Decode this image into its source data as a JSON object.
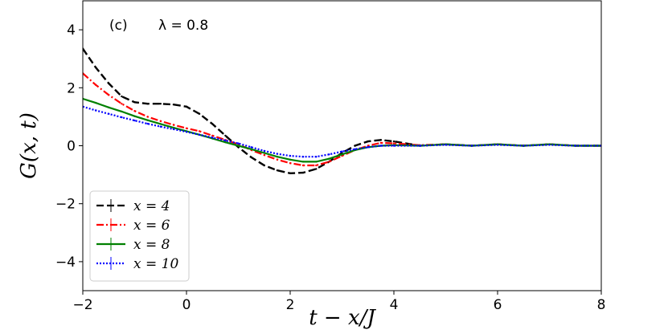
{
  "chart_data": {
    "type": "line",
    "panel_label": "(c)",
    "annotation": "λ = 0.8",
    "xlabel": "t − x/J",
    "ylabel": "G(x, t)",
    "xlim": [
      -2,
      8
    ],
    "ylim": [
      -5,
      5
    ],
    "x_ticks": [
      "−2",
      "0",
      "2",
      "4",
      "6",
      "8"
    ],
    "y_ticks": [
      "−4",
      "−2",
      "0",
      "2",
      "4"
    ],
    "x_tick_values": [
      -2,
      0,
      2,
      4,
      6,
      8
    ],
    "y_tick_values": [
      -4,
      -2,
      0,
      2,
      4
    ],
    "grid": false,
    "legend_position": "lower-left",
    "series": [
      {
        "name": "x = 4",
        "color": "#000000",
        "style": "dashed",
        "x": [
          -2,
          -1.75,
          -1.5,
          -1.25,
          -1,
          -0.75,
          -0.5,
          -0.25,
          0,
          0.25,
          0.5,
          0.75,
          1,
          1.25,
          1.5,
          1.75,
          2,
          2.25,
          2.5,
          2.75,
          3,
          3.25,
          3.5,
          3.75,
          4,
          4.5,
          5,
          5.5,
          6,
          6.5,
          7,
          7.5,
          8
        ],
        "y": [
          3.35,
          2.7,
          2.15,
          1.7,
          1.5,
          1.45,
          1.45,
          1.42,
          1.35,
          1.1,
          0.75,
          0.35,
          -0.05,
          -0.4,
          -0.68,
          -0.85,
          -0.95,
          -0.93,
          -0.8,
          -0.55,
          -0.25,
          0.0,
          0.15,
          0.2,
          0.15,
          0.0,
          0.05,
          0.0,
          0.05,
          0.0,
          0.05,
          0.0,
          0.0
        ]
      },
      {
        "name": "x = 6",
        "color": "#ff0000",
        "style": "dashdot",
        "x": [
          -2,
          -1.75,
          -1.5,
          -1.25,
          -1,
          -0.75,
          -0.5,
          -0.25,
          0,
          0.25,
          0.5,
          0.75,
          1,
          1.25,
          1.5,
          1.75,
          2,
          2.25,
          2.5,
          2.75,
          3,
          3.25,
          3.5,
          3.75,
          4,
          4.5,
          5,
          5.5,
          6,
          6.5,
          7,
          7.5,
          8
        ],
        "y": [
          2.5,
          2.1,
          1.75,
          1.45,
          1.2,
          1.0,
          0.85,
          0.72,
          0.6,
          0.5,
          0.35,
          0.2,
          0.05,
          -0.15,
          -0.32,
          -0.48,
          -0.6,
          -0.68,
          -0.68,
          -0.55,
          -0.35,
          -0.15,
          0.0,
          0.1,
          0.08,
          0.02,
          0.05,
          0.0,
          0.05,
          0.0,
          0.05,
          0.0,
          0.0
        ]
      },
      {
        "name": "x = 8",
        "color": "#008000",
        "style": "solid",
        "x": [
          -2,
          -1.75,
          -1.5,
          -1.25,
          -1,
          -0.75,
          -0.5,
          -0.25,
          0,
          0.25,
          0.5,
          0.75,
          1,
          1.25,
          1.5,
          1.75,
          2,
          2.25,
          2.5,
          2.75,
          3,
          3.25,
          3.5,
          3.75,
          4,
          4.5,
          5,
          5.5,
          6,
          6.5,
          7,
          7.5,
          8
        ],
        "y": [
          1.62,
          1.48,
          1.32,
          1.18,
          1.02,
          0.88,
          0.75,
          0.62,
          0.5,
          0.38,
          0.25,
          0.12,
          0.0,
          -0.12,
          -0.25,
          -0.38,
          -0.48,
          -0.55,
          -0.55,
          -0.45,
          -0.3,
          -0.15,
          -0.05,
          0.0,
          0.02,
          0.0,
          0.05,
          0.0,
          0.05,
          0.0,
          0.05,
          0.0,
          0.0
        ]
      },
      {
        "name": "x = 10",
        "color": "#0000ff",
        "style": "dotted",
        "x": [
          -2,
          -1.75,
          -1.5,
          -1.25,
          -1,
          -0.75,
          -0.5,
          -0.25,
          0,
          0.25,
          0.5,
          0.75,
          1,
          1.25,
          1.5,
          1.75,
          2,
          2.25,
          2.5,
          2.75,
          3,
          3.25,
          3.5,
          3.75,
          4,
          4.5,
          5,
          5.5,
          6,
          6.5,
          7,
          7.5,
          8
        ],
        "y": [
          1.35,
          1.22,
          1.1,
          0.98,
          0.87,
          0.76,
          0.66,
          0.57,
          0.48,
          0.38,
          0.28,
          0.18,
          0.08,
          -0.05,
          -0.18,
          -0.28,
          -0.35,
          -0.38,
          -0.38,
          -0.3,
          -0.2,
          -0.12,
          -0.05,
          0.0,
          0.0,
          0.0,
          0.03,
          0.0,
          0.03,
          0.0,
          0.03,
          0.0,
          0.0
        ]
      }
    ]
  }
}
